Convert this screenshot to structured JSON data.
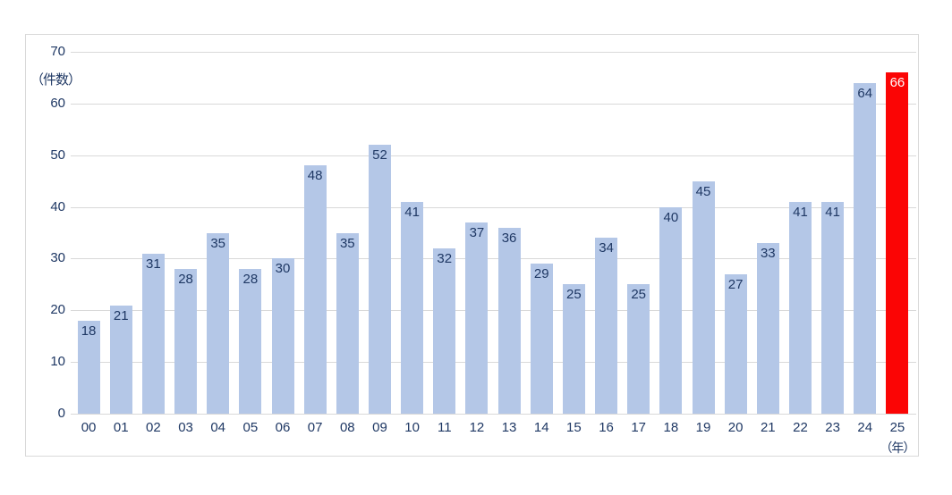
{
  "chart_data": {
    "type": "bar",
    "title": "",
    "ylabel": "",
    "xlabel": "",
    "y_unit_label": "（件数）",
    "x_unit_label": "（年）",
    "categories": [
      "00",
      "01",
      "02",
      "03",
      "04",
      "05",
      "06",
      "07",
      "08",
      "09",
      "10",
      "11",
      "12",
      "13",
      "14",
      "15",
      "16",
      "17",
      "18",
      "19",
      "20",
      "21",
      "22",
      "23",
      "24",
      "25"
    ],
    "values": [
      18,
      21,
      31,
      28,
      35,
      28,
      30,
      48,
      35,
      52,
      41,
      32,
      37,
      36,
      29,
      25,
      34,
      25,
      40,
      45,
      27,
      33,
      41,
      41,
      64,
      66
    ],
    "ylim": [
      0,
      70
    ],
    "y_ticks": [
      0,
      10,
      20,
      30,
      40,
      50,
      60,
      70
    ],
    "grid": true,
    "legend": "none",
    "data_labels": "inside-end",
    "colors": {
      "bar": "#b4c7e7",
      "highlight_bar": "#fb0505",
      "value_label": "#1f3864",
      "highlight_value_label": "#ffffff",
      "axis_text": "#1f3864",
      "gridline": "#d9d9d9",
      "frame_border": "#d9d9d9",
      "background": "#ffffff"
    },
    "highlight_index": 25
  }
}
